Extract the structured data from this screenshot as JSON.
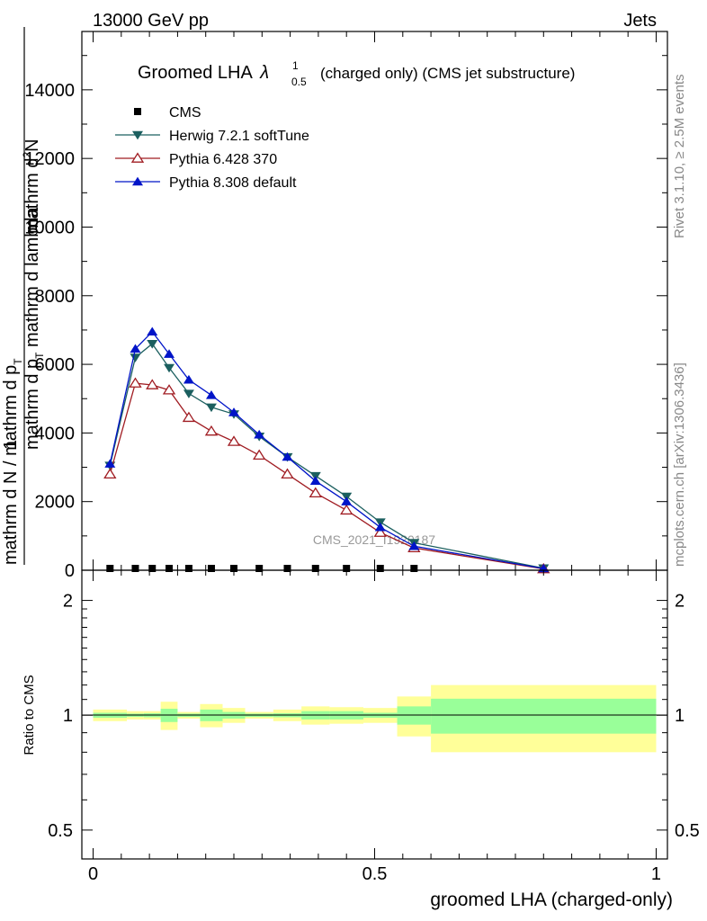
{
  "header": {
    "left": "13000 GeV pp",
    "right": "Jets"
  },
  "side_text": {
    "rivet": "Rivet 3.1.10, ≥ 2.5M events",
    "mcplots": "mcplots.cern.ch [arXiv:1306.3436]"
  },
  "watermark": "CMS_2021_I1920187",
  "chart_data": {
    "type": "line",
    "title": "Groomed LHA",
    "title_symbol": "λ",
    "title_sup": "1",
    "title_sub": "0.5",
    "title_suffix": "(charged only) (CMS jet substructure)",
    "ylabel_top": "mathrm d",
    "ylabel_top_sup": "2",
    "ylabel_top_rest": "N",
    "ylabel_bottom": "mathrm d p",
    "ylabel_bottom_sub": "T",
    "ylabel_bottom_rest": " mathrm d lambda",
    "ylabel_one": "1",
    "ylabel_denominator": "mathrm d N / mathrm d p",
    "ylabel_denominator_sub": "T",
    "xlabel": "groomed LHA (charged-only)",
    "ylim": [
      0,
      15700
    ],
    "xlim": [
      -0.02,
      1.02
    ],
    "yticks": [
      0,
      2000,
      4000,
      6000,
      8000,
      10000,
      12000,
      14000
    ],
    "ytick_labels": [
      "0",
      "2000",
      "4000",
      "6000",
      "8000",
      "10000",
      "12000",
      "14000"
    ],
    "legend_position": "top-left",
    "series": [
      {
        "name": "CMS",
        "color": "#000000",
        "marker": "square",
        "x": [
          0.03,
          0.075,
          0.105,
          0.135,
          0.17,
          0.21,
          0.25,
          0.295,
          0.345,
          0.395,
          0.45,
          0.51,
          0.57
        ],
        "values": [
          0,
          0,
          0,
          0,
          0,
          0,
          0,
          0,
          0,
          0,
          0,
          0,
          0
        ]
      },
      {
        "name": "Herwig 7.2.1 softTune",
        "color": "#1b5f5f",
        "marker": "triangle-down",
        "x": [
          0.03,
          0.075,
          0.105,
          0.135,
          0.17,
          0.21,
          0.25,
          0.295,
          0.345,
          0.395,
          0.45,
          0.51,
          0.57,
          0.8
        ],
        "values": [
          3050,
          6200,
          6600,
          5900,
          5150,
          4750,
          4550,
          3900,
          3300,
          2750,
          2150,
          1400,
          800,
          60
        ]
      },
      {
        "name": "Pythia 6.428 370",
        "color": "#a01c22",
        "marker": "triangle-up-open",
        "x": [
          0.03,
          0.075,
          0.105,
          0.135,
          0.17,
          0.21,
          0.25,
          0.295,
          0.345,
          0.395,
          0.45,
          0.51,
          0.57,
          0.8
        ],
        "values": [
          2800,
          5450,
          5400,
          5250,
          4450,
          4050,
          3750,
          3350,
          2800,
          2250,
          1750,
          1100,
          650,
          40
        ]
      },
      {
        "name": "Pythia 8.308 default",
        "color": "#0014c8",
        "marker": "triangle-up",
        "x": [
          0.03,
          0.075,
          0.105,
          0.135,
          0.17,
          0.21,
          0.25,
          0.295,
          0.345,
          0.395,
          0.45,
          0.51,
          0.57,
          0.8
        ],
        "values": [
          3100,
          6450,
          6950,
          6300,
          5550,
          5100,
          4600,
          3950,
          3300,
          2600,
          2000,
          1250,
          700,
          50
        ]
      }
    ],
    "ratio": {
      "ylabel": "Ratio to CMS",
      "ylim_log": [
        0.42,
        2.4
      ],
      "yticks": [
        0.5,
        1,
        2
      ],
      "ytick_labels": [
        "0.5",
        "1",
        "2"
      ],
      "xticks": [
        0,
        0.5,
        1
      ],
      "xtick_labels": [
        "0",
        "0.5",
        "1"
      ],
      "bins": [
        {
          "lo": 0.0,
          "hi": 0.06,
          "stat": 0.015,
          "total": 0.035
        },
        {
          "lo": 0.06,
          "hi": 0.09,
          "stat": 0.01,
          "total": 0.025
        },
        {
          "lo": 0.09,
          "hi": 0.12,
          "stat": 0.012,
          "total": 0.025
        },
        {
          "lo": 0.12,
          "hi": 0.15,
          "stat": 0.04,
          "total": 0.085
        },
        {
          "lo": 0.15,
          "hi": 0.19,
          "stat": 0.01,
          "total": 0.02
        },
        {
          "lo": 0.19,
          "hi": 0.23,
          "stat": 0.035,
          "total": 0.07
        },
        {
          "lo": 0.23,
          "hi": 0.27,
          "stat": 0.02,
          "total": 0.045
        },
        {
          "lo": 0.27,
          "hi": 0.32,
          "stat": 0.01,
          "total": 0.02
        },
        {
          "lo": 0.32,
          "hi": 0.37,
          "stat": 0.012,
          "total": 0.035
        },
        {
          "lo": 0.37,
          "hi": 0.42,
          "stat": 0.025,
          "total": 0.055
        },
        {
          "lo": 0.42,
          "hi": 0.48,
          "stat": 0.025,
          "total": 0.05
        },
        {
          "lo": 0.48,
          "hi": 0.54,
          "stat": 0.015,
          "total": 0.045
        },
        {
          "lo": 0.54,
          "hi": 0.6,
          "stat": 0.055,
          "total": 0.12
        },
        {
          "lo": 0.6,
          "hi": 1.0,
          "stat": 0.105,
          "total": 0.2
        }
      ]
    },
    "colors": {
      "stat_band": "#99ff99",
      "total_band": "#ffff99"
    }
  }
}
